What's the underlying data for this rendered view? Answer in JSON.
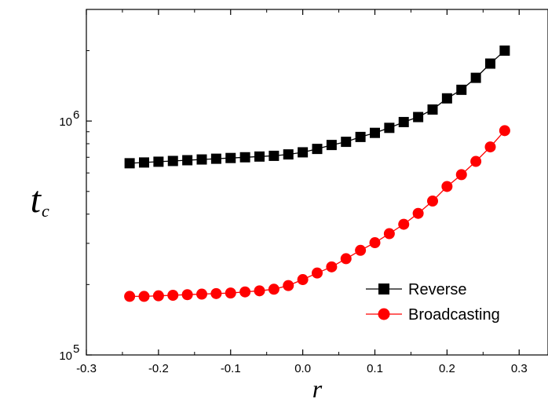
{
  "chart_data": {
    "type": "line",
    "xlabel": "r",
    "ylabel": {
      "main": "t",
      "sub": "c"
    },
    "xlim": [
      -0.3,
      0.34
    ],
    "ylim": [
      100000,
      3000000
    ],
    "yscale": "log",
    "grid": false,
    "legend_position": "bottom-right",
    "x_ticks": [
      -0.3,
      -0.2,
      -0.1,
      0.0,
      0.1,
      0.2,
      0.3
    ],
    "x_tick_labels": [
      "-0.3",
      "-0.2",
      "-0.1",
      "0.0",
      "0.1",
      "0.2",
      "0.3"
    ],
    "y_ticks": [
      {
        "value": 100000,
        "base": "10",
        "exp": "5"
      },
      {
        "value": 1000000,
        "base": "10",
        "exp": "6"
      }
    ],
    "x": [
      -0.24,
      -0.22,
      -0.2,
      -0.18,
      -0.16,
      -0.14,
      -0.12,
      -0.1,
      -0.08,
      -0.06,
      -0.04,
      -0.02,
      0.0,
      0.02,
      0.04,
      0.06,
      0.08,
      0.1,
      0.12,
      0.14,
      0.16,
      0.18,
      0.2,
      0.22,
      0.24,
      0.26,
      0.28
    ],
    "series": [
      {
        "name": "Reverse",
        "color": "#000000",
        "marker": "square",
        "values": [
          660000,
          665000,
          670000,
          675000,
          680000,
          685000,
          690000,
          695000,
          700000,
          705000,
          710000,
          720000,
          735000,
          760000,
          790000,
          815000,
          855000,
          890000,
          935000,
          990000,
          1040000,
          1120000,
          1250000,
          1360000,
          1530000,
          1760000,
          2000000
        ]
      },
      {
        "name": "Broadcasting",
        "color": "#ff0000",
        "marker": "circle",
        "values": [
          178000,
          178000,
          179000,
          180000,
          181000,
          182000,
          183000,
          184000,
          186000,
          188000,
          191000,
          198000,
          210000,
          224000,
          238000,
          258000,
          280000,
          302000,
          330000,
          362000,
          403000,
          455000,
          525000,
          590000,
          672000,
          775000,
          910000
        ]
      }
    ]
  }
}
